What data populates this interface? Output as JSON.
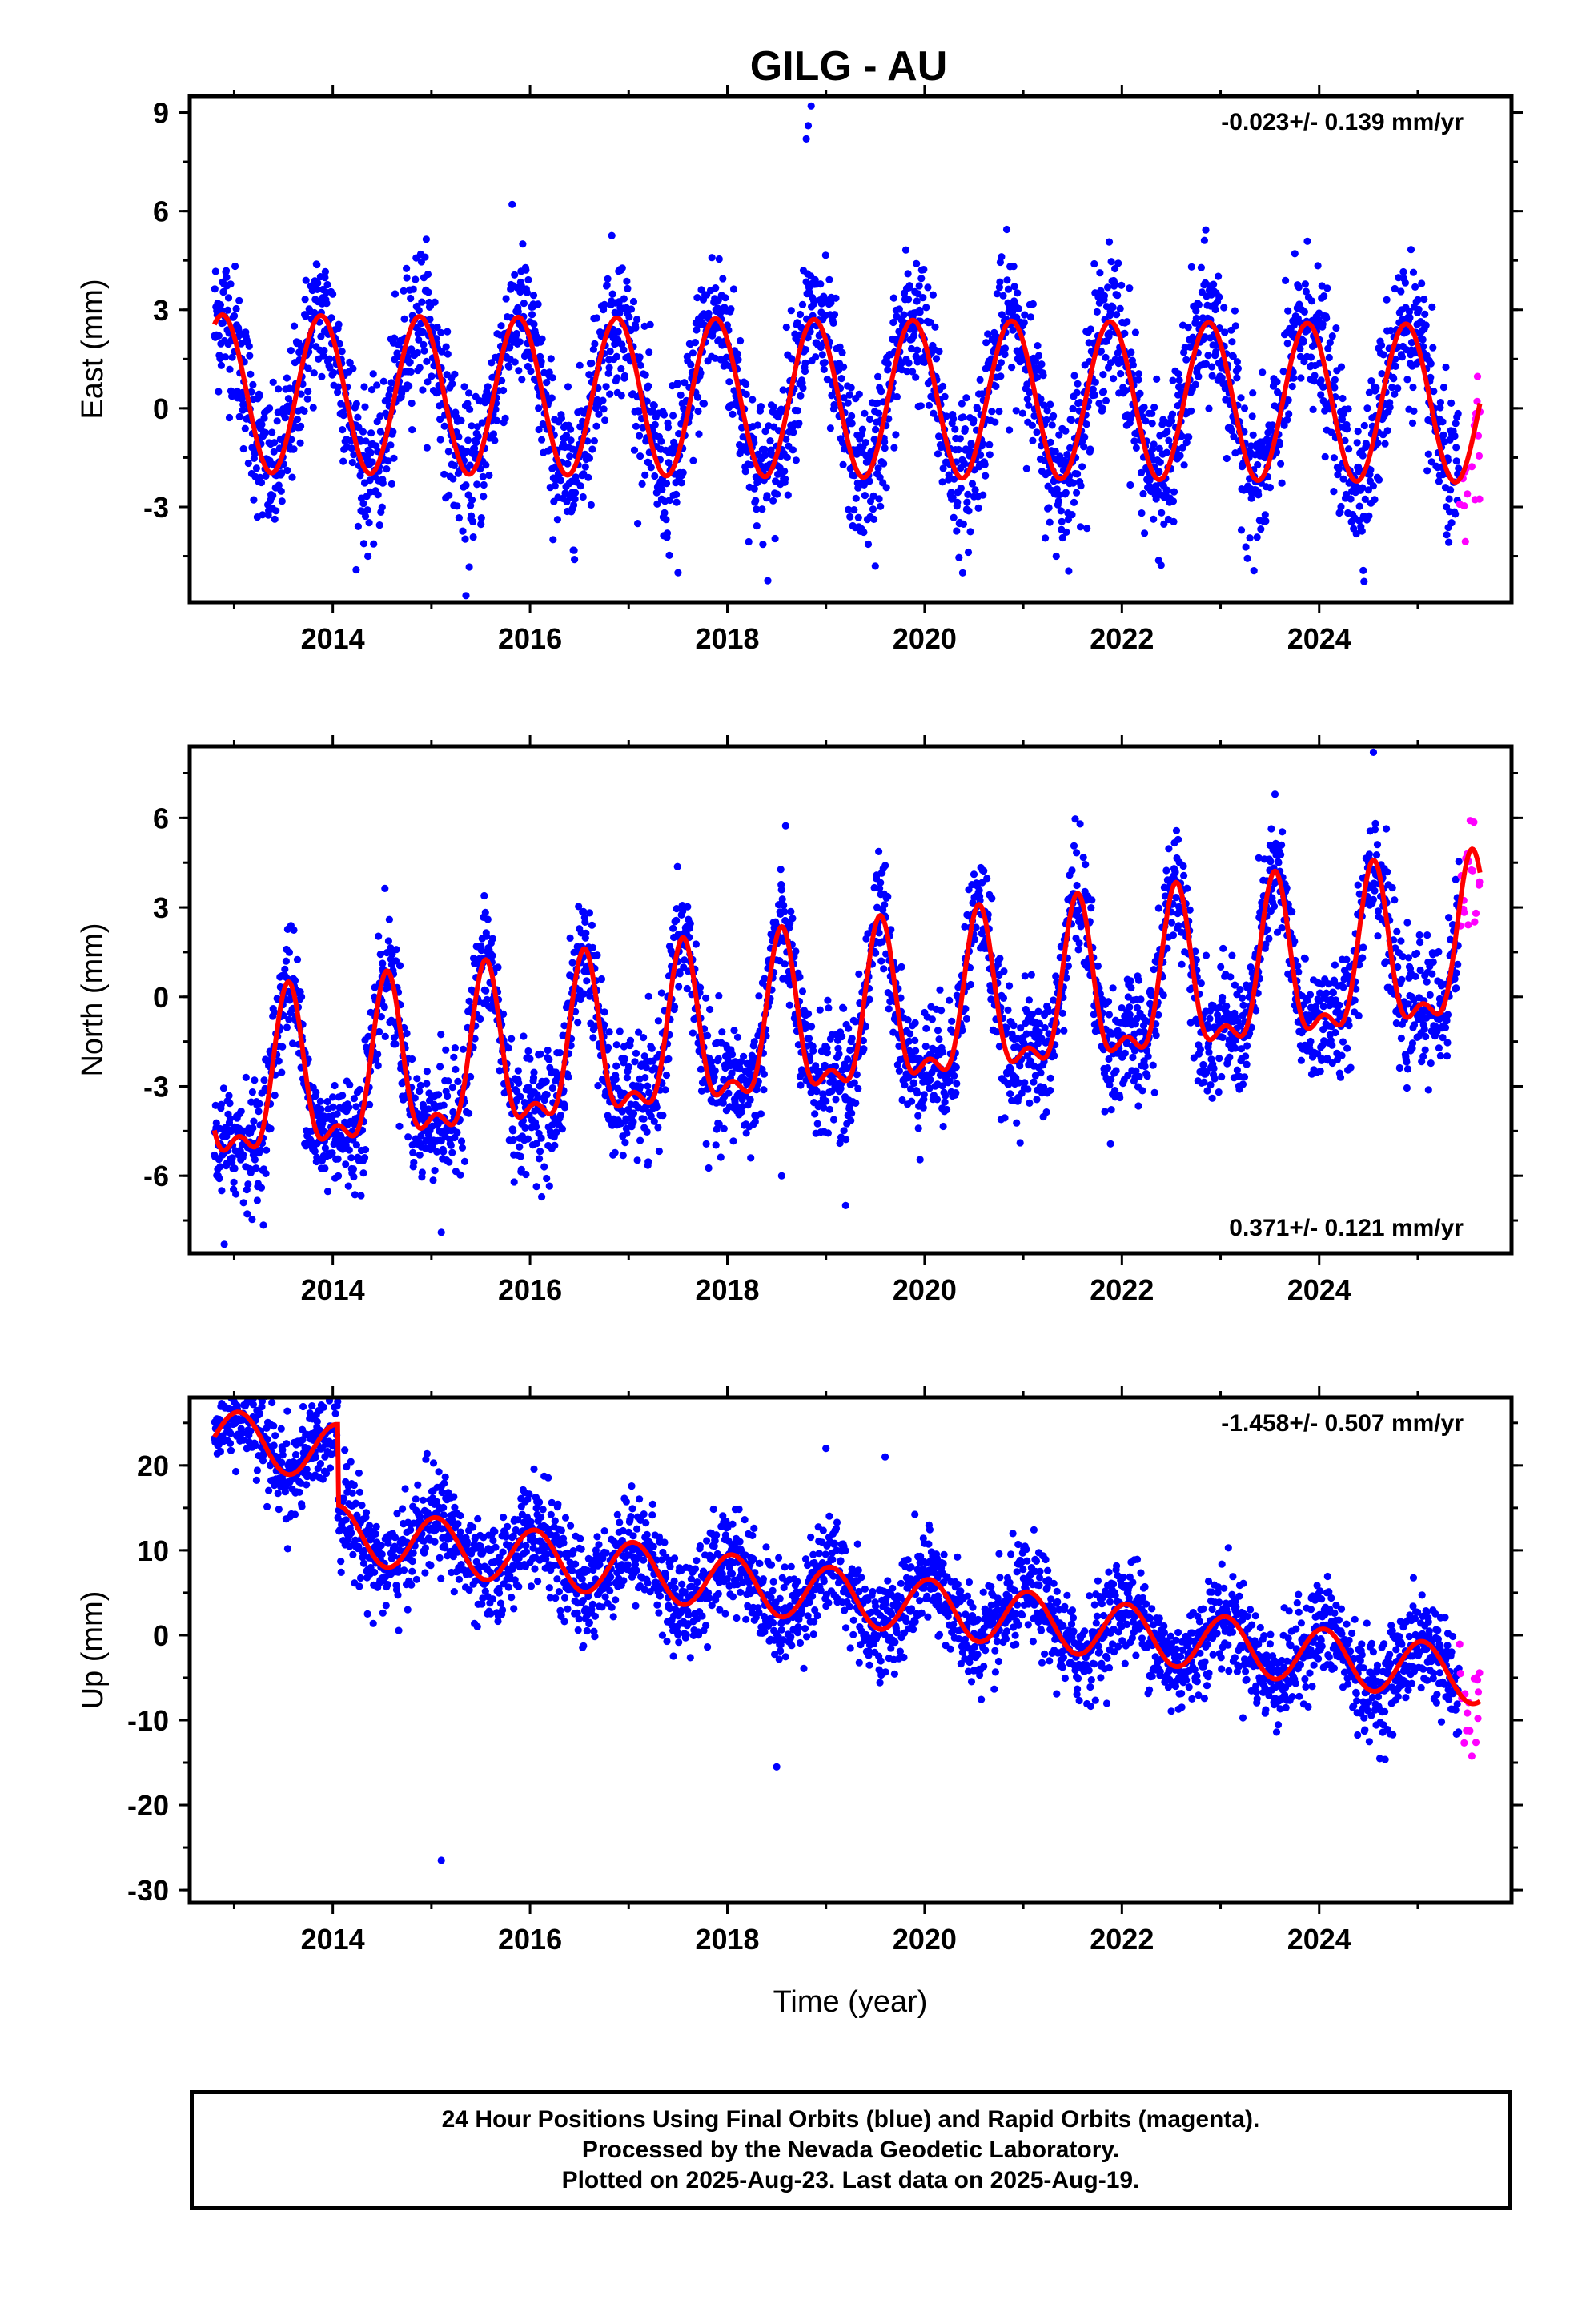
{
  "chart_data": {
    "type": "scatter",
    "title": "GILG - AU",
    "xlabel": "Time (year)",
    "xlim": [
      2012.55,
      2025.95
    ],
    "x_ticks": [
      2014,
      2016,
      2018,
      2020,
      2022,
      2024
    ],
    "data_start": 2012.8,
    "data_end": 2025.63,
    "rapid_start": 2025.42,
    "colors": {
      "final": "#0000ff",
      "rapid": "#ff00ff",
      "model": "#ff0000"
    },
    "panels": [
      {
        "name": "east",
        "ylabel": "East (mm)",
        "ylim": [
          -5.9,
          9.5
        ],
        "y_ticks": [
          -3,
          0,
          3,
          6,
          9
        ],
        "rate": "-0.023+/- 0.139 mm/yr",
        "rate_position": "top-right",
        "model": {
          "offset": 0.3,
          "trend": -0.023,
          "annual_amp": 2.4,
          "annual_peak": 0.88,
          "semi_amp": 0.0,
          "semi_peak": 0.0,
          "steps": []
        },
        "scatter_sd": 1.1,
        "outliers": [
          [
            2018.85,
            9.2
          ],
          [
            2018.82,
            8.6
          ],
          [
            2018.8,
            8.2
          ],
          [
            2015.35,
            -5.7
          ],
          [
            2017.5,
            -5.0
          ],
          [
            2019.5,
            -4.8
          ]
        ]
      },
      {
        "name": "north",
        "ylabel": "North (mm)",
        "ylim": [
          -8.6,
          8.4
        ],
        "y_ticks": [
          -6,
          -3,
          0,
          3,
          6
        ],
        "rate": "0.371+/- 0.121 mm/yr",
        "rate_position": "bottom-right",
        "model": {
          "offset": -1.0,
          "trend": 0.371,
          "annual_amp": 2.5,
          "annual_peak": 0.55,
          "semi_amp": 1.1,
          "semi_peak": 0.05,
          "steps": []
        },
        "scatter_sd": 1.0,
        "outliers": [
          [
            2024.55,
            8.2
          ],
          [
            2012.9,
            -8.3
          ],
          [
            2015.1,
            -7.9
          ],
          [
            2019.2,
            -7.0
          ],
          [
            2018.55,
            -6.0
          ]
        ]
      },
      {
        "name": "up",
        "ylabel": "Up (mm)",
        "ylim": [
          -31.5,
          28.0
        ],
        "y_ticks": [
          -30,
          -20,
          -10,
          0,
          10,
          20
        ],
        "rate": "-1.458+/- 0.507 mm/yr",
        "rate_position": "top-right",
        "model": {
          "offset": 14.0,
          "trend": -1.458,
          "annual_amp": 3.3,
          "annual_peak": 0.05,
          "semi_amp": 0.0,
          "semi_peak": 0.0,
          "steps": [
            [
              2014.05,
              -9.5
            ]
          ]
        },
        "scatter_sd": 2.9,
        "outliers": [
          [
            2015.1,
            -26.5
          ],
          [
            2018.5,
            -15.5
          ],
          [
            2019.0,
            22.0
          ],
          [
            2019.6,
            21.0
          ],
          [
            2014.05,
            27.5
          ]
        ]
      }
    ],
    "footer_lines": [
      "24 Hour Positions Using Final Orbits (blue) and Rapid Orbits (magenta).",
      "Processed by the Nevada Geodetic Laboratory.",
      "Plotted on 2025-Aug-23. Last data on 2025-Aug-19."
    ]
  }
}
